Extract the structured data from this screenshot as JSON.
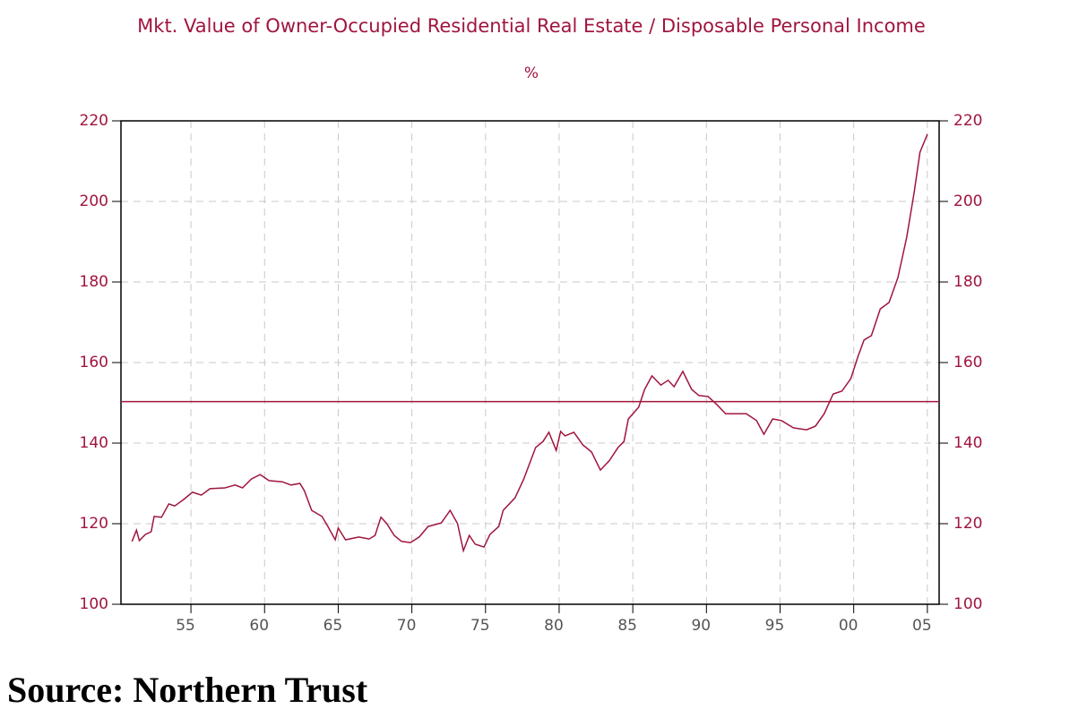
{
  "chart_data": {
    "type": "line",
    "title": "Mkt. Value of Owner-Occupied Residential Real Estate / Disposable Personal Income",
    "subtitle": "%",
    "x": [
      1951.0,
      1951.3,
      1951.5,
      1951.9,
      1952.3,
      1952.5,
      1953.0,
      1953.5,
      1953.9,
      1954.5,
      1955.1,
      1955.7,
      1956.3,
      1957.3,
      1958.0,
      1958.5,
      1959.1,
      1959.7,
      1960.3,
      1961.2,
      1961.8,
      1962.4,
      1962.7,
      1963.2,
      1963.9,
      1964.3,
      1964.8,
      1965.0,
      1965.5,
      1966.4,
      1967.1,
      1967.5,
      1967.9,
      1968.3,
      1968.8,
      1969.3,
      1969.9,
      1970.5,
      1971.1,
      1972.0,
      1972.6,
      1973.1,
      1973.5,
      1973.9,
      1974.3,
      1974.9,
      1975.3,
      1975.9,
      1976.2,
      1977.0,
      1977.6,
      1978.4,
      1978.9,
      1979.3,
      1979.8,
      1980.1,
      1980.4,
      1981.0,
      1981.6,
      1982.2,
      1982.8,
      1983.4,
      1984.0,
      1984.4,
      1984.7,
      1985.4,
      1985.8,
      1986.3,
      1986.9,
      1987.4,
      1987.8,
      1988.4,
      1989.0,
      1989.5,
      1990.1,
      1990.7,
      1991.3,
      1991.9,
      1992.7,
      1993.4,
      1993.9,
      1994.5,
      1995.1,
      1995.9,
      1996.8,
      1997.4,
      1998.0,
      1998.6,
      1999.2,
      1999.8,
      2000.3,
      2000.7,
      2001.2,
      2001.8,
      2002.4,
      2003.0,
      2003.6,
      2004.1,
      2004.5,
      2005.0
    ],
    "values": [
      115.6,
      118.4,
      115.8,
      117.3,
      118.0,
      121.8,
      121.6,
      124.9,
      124.4,
      126.0,
      127.8,
      127.1,
      128.7,
      128.9,
      129.6,
      128.9,
      131.1,
      132.2,
      130.7,
      130.4,
      129.6,
      130.0,
      128.2,
      123.3,
      121.8,
      119.3,
      116.0,
      118.9,
      116.0,
      116.7,
      116.2,
      117.1,
      121.6,
      120.0,
      117.1,
      115.6,
      115.3,
      116.7,
      119.3,
      120.2,
      123.3,
      120.0,
      113.3,
      117.1,
      114.9,
      114.2,
      117.3,
      119.3,
      123.3,
      126.4,
      131.1,
      138.9,
      140.4,
      142.7,
      138.2,
      142.9,
      141.8,
      142.7,
      139.6,
      137.8,
      133.3,
      135.6,
      138.9,
      140.4,
      146.0,
      148.9,
      153.3,
      156.7,
      154.4,
      155.6,
      154.0,
      157.8,
      153.3,
      151.8,
      151.6,
      149.6,
      147.3,
      147.3,
      147.3,
      145.6,
      142.2,
      146.0,
      145.6,
      143.8,
      143.3,
      144.2,
      147.3,
      152.2,
      152.9,
      156.0,
      161.6,
      165.6,
      166.7,
      173.3,
      174.9,
      181.1,
      191.1,
      202.2,
      212.2,
      216.7
    ],
    "color": "#a0153e",
    "xlim": [
      1950.25,
      2005.8
    ],
    "xticks": [
      {
        "value": 1955,
        "label": "55"
      },
      {
        "value": 1960,
        "label": "60"
      },
      {
        "value": 1965,
        "label": "65"
      },
      {
        "value": 1970,
        "label": "70"
      },
      {
        "value": 1975,
        "label": "75"
      },
      {
        "value": 1980,
        "label": "80"
      },
      {
        "value": 1985,
        "label": "85"
      },
      {
        "value": 1990,
        "label": "90"
      },
      {
        "value": 1995,
        "label": "95"
      },
      {
        "value": 2000,
        "label": "00"
      },
      {
        "value": 2005,
        "label": "05"
      }
    ],
    "ylim": [
      100,
      220
    ],
    "yticks": [
      100,
      120,
      140,
      160,
      180,
      200,
      220
    ],
    "y2lim": [
      100,
      220
    ],
    "y2ticks": [
      100,
      120,
      140,
      160,
      180,
      200,
      220
    ],
    "grid": true,
    "reference_line": 150.3,
    "reference_color": "#a0153e"
  },
  "source": "Source: Northern Trust"
}
